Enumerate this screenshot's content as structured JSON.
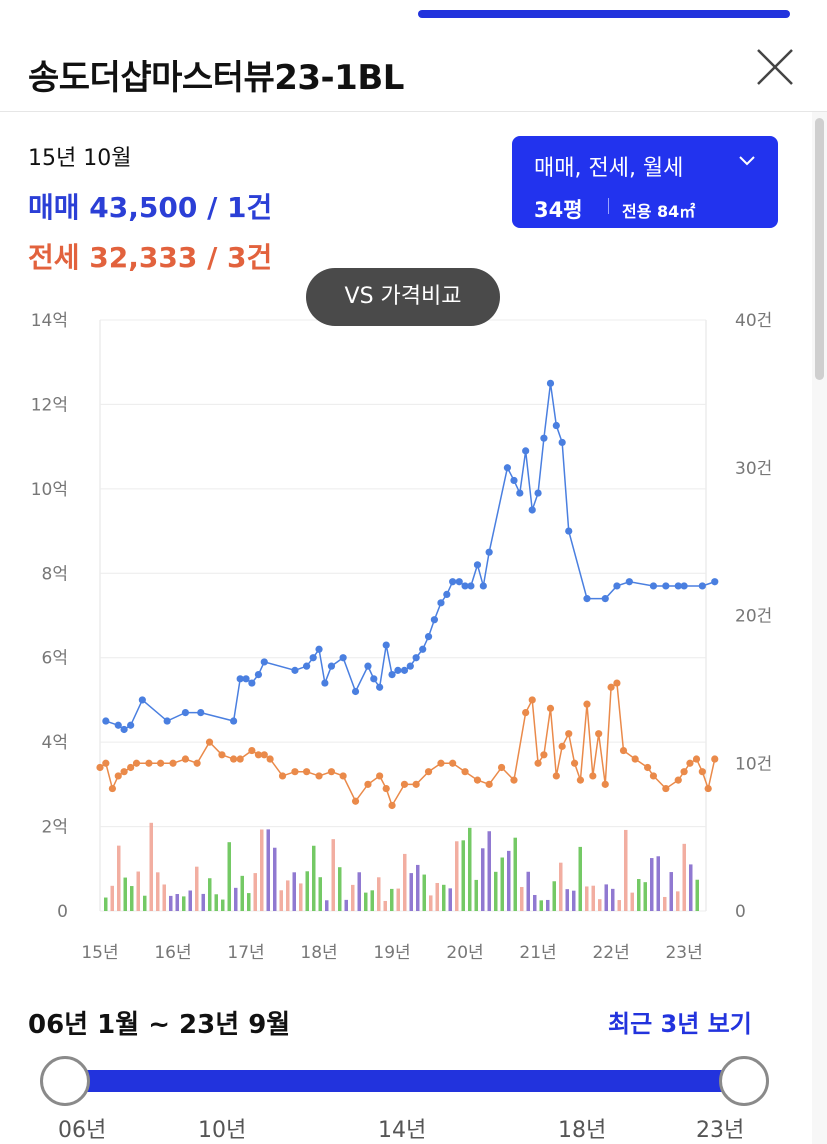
{
  "colors": {
    "accent": "#2233dd",
    "sale": "#2b3fd6",
    "jeonse": "#e2623d",
    "line_blue": "#4a7fe0",
    "line_orange": "#ea8a4a",
    "bar_green": "#5cbf4a",
    "bar_purple": "#7d62c9",
    "bar_salmon": "#f0a090"
  },
  "header": {
    "title": "송도더샵마스터뷰23-1BL",
    "close_icon": "close-icon"
  },
  "summary": {
    "date": "15년 10월",
    "sale": "매매 43,500 / 1건",
    "jeonse": "전세 32,333 / 3건"
  },
  "filter": {
    "types": "매매, 전세, 월세",
    "chevron_icon": "chevron-down-icon",
    "size": "34평",
    "area": "전용 84㎡"
  },
  "vs_button": "VS 가격비교",
  "chart_data": {
    "type": "line",
    "y_left_ticks": [
      "0",
      "2억",
      "4억",
      "6억",
      "8억",
      "10억",
      "12억",
      "14억"
    ],
    "y_left_range": [
      0,
      14
    ],
    "y_left_unit": "억",
    "y_right_ticks": [
      "0",
      "10건",
      "20건",
      "30건",
      "40건"
    ],
    "y_right_range": [
      0,
      40
    ],
    "x_ticks": [
      "15년",
      "16년",
      "17년",
      "18년",
      "19년",
      "20년",
      "21년",
      "22년",
      "23년"
    ],
    "x_range": [
      2015.0,
      2023.3
    ],
    "series": [
      {
        "name": "매매",
        "color": "#4a7fe0",
        "x": [
          2015.08,
          2015.25,
          2015.33,
          2015.42,
          2015.58,
          2015.92,
          2016.17,
          2016.38,
          2016.83,
          2016.92,
          2017.0,
          2017.08,
          2017.17,
          2017.25,
          2017.67,
          2017.83,
          2017.92,
          2018.0,
          2018.08,
          2018.17,
          2018.33,
          2018.5,
          2018.67,
          2018.75,
          2018.83,
          2018.92,
          2019.0,
          2019.08,
          2019.17,
          2019.25,
          2019.33,
          2019.42,
          2019.5,
          2019.58,
          2019.67,
          2019.75,
          2019.83,
          2019.92,
          2020.0,
          2020.08,
          2020.17,
          2020.25,
          2020.33,
          2020.58,
          2020.67,
          2020.75,
          2020.83,
          2020.92,
          2021.0,
          2021.08,
          2021.17,
          2021.25,
          2021.33,
          2021.42,
          2021.67,
          2021.92,
          2022.08,
          2022.25,
          2022.58,
          2022.75,
          2022.92,
          2023.0,
          2023.25,
          2023.42
        ],
        "y": [
          4.5,
          4.4,
          4.3,
          4.4,
          5.0,
          4.5,
          4.7,
          4.7,
          4.5,
          5.5,
          5.5,
          5.4,
          5.6,
          5.9,
          5.7,
          5.8,
          6.0,
          6.2,
          5.4,
          5.8,
          6.0,
          5.2,
          5.8,
          5.5,
          5.3,
          6.3,
          5.6,
          5.7,
          5.7,
          5.8,
          6.0,
          6.2,
          6.5,
          6.9,
          7.3,
          7.5,
          7.8,
          7.8,
          7.7,
          7.7,
          8.2,
          7.7,
          8.5,
          10.5,
          10.2,
          9.9,
          10.9,
          9.5,
          9.9,
          11.2,
          12.5,
          11.5,
          11.1,
          9.0,
          7.4,
          7.4,
          7.7,
          7.8,
          7.7,
          7.7,
          7.7,
          7.7,
          7.7,
          7.8
        ],
        "x_note": ""
      },
      {
        "name": "전세",
        "color": "#ea8a4a",
        "x": [
          2015.0,
          2015.08,
          2015.17,
          2015.25,
          2015.33,
          2015.42,
          2015.5,
          2015.67,
          2015.83,
          2016.0,
          2016.17,
          2016.33,
          2016.5,
          2016.67,
          2016.83,
          2016.92,
          2017.08,
          2017.17,
          2017.25,
          2017.33,
          2017.5,
          2017.67,
          2017.83,
          2018.0,
          2018.17,
          2018.33,
          2018.5,
          2018.67,
          2018.83,
          2018.92,
          2019.0,
          2019.17,
          2019.33,
          2019.5,
          2019.67,
          2019.83,
          2020.0,
          2020.17,
          2020.33,
          2020.5,
          2020.67,
          2020.83,
          2020.92,
          2021.0,
          2021.08,
          2021.17,
          2021.25,
          2021.33,
          2021.42,
          2021.5,
          2021.58,
          2021.67,
          2021.75,
          2021.83,
          2021.92,
          2022.0,
          2022.08,
          2022.17,
          2022.33,
          2022.5,
          2022.58,
          2022.75,
          2022.92,
          2023.0,
          2023.08,
          2023.17,
          2023.25,
          2023.33,
          2023.42
        ],
        "y": [
          3.4,
          3.5,
          2.9,
          3.2,
          3.3,
          3.4,
          3.5,
          3.5,
          3.5,
          3.5,
          3.6,
          3.5,
          4.0,
          3.7,
          3.6,
          3.6,
          3.8,
          3.7,
          3.7,
          3.6,
          3.2,
          3.3,
          3.3,
          3.2,
          3.3,
          3.2,
          2.6,
          3.0,
          3.2,
          2.9,
          2.5,
          3.0,
          3.0,
          3.3,
          3.5,
          3.5,
          3.3,
          3.1,
          3.0,
          3.4,
          3.1,
          4.7,
          5.0,
          3.5,
          3.7,
          4.8,
          3.2,
          3.9,
          4.2,
          3.5,
          3.1,
          4.9,
          3.2,
          4.2,
          3.0,
          5.3,
          5.4,
          3.8,
          3.6,
          3.4,
          3.2,
          2.9,
          3.1,
          3.3,
          3.5,
          3.6,
          3.3,
          2.9,
          3.6
        ]
      }
    ]
  },
  "range": {
    "text": "06년 1월 ~ 23년 9월",
    "recent_label": "최근 3년 보기",
    "labels": [
      "06년",
      "10년",
      "14년",
      "18년",
      "23년"
    ]
  }
}
